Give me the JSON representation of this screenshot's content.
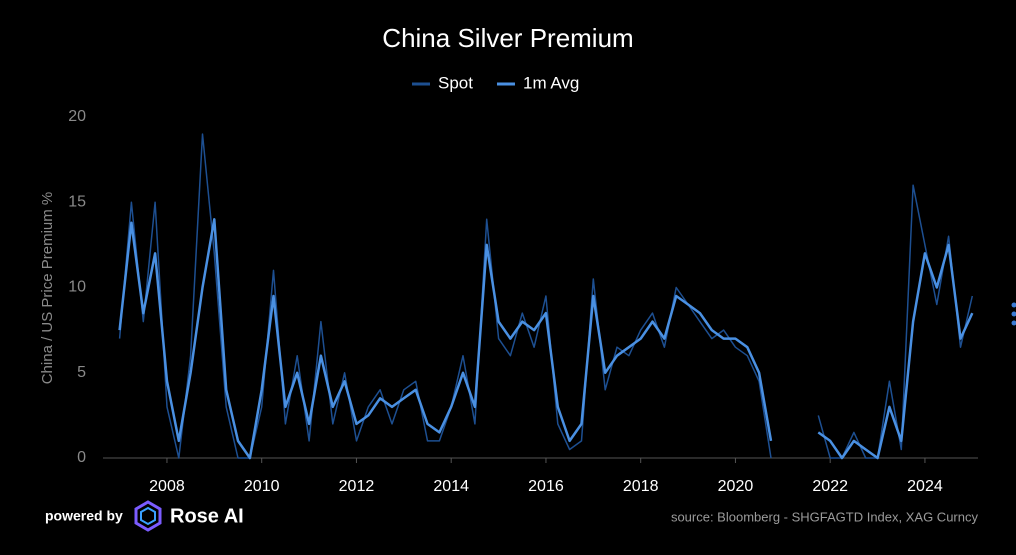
{
  "chart_data": {
    "type": "line",
    "title": "China Silver Premium",
    "y_label": "China / US Price Premium %",
    "x": [
      2007,
      2007.25,
      2007.5,
      2007.75,
      2008,
      2008.25,
      2008.5,
      2008.75,
      2009,
      2009.25,
      2009.5,
      2009.75,
      2010,
      2010.25,
      2010.5,
      2010.75,
      2011,
      2011.25,
      2011.5,
      2011.75,
      2012,
      2012.25,
      2012.5,
      2012.75,
      2013,
      2013.25,
      2013.5,
      2013.75,
      2014,
      2014.25,
      2014.5,
      2014.75,
      2015,
      2015.25,
      2015.5,
      2015.75,
      2016,
      2016.25,
      2016.5,
      2016.75,
      2017,
      2017.25,
      2017.5,
      2017.75,
      2018,
      2018.25,
      2018.5,
      2018.75,
      2019,
      2019.25,
      2019.5,
      2019.75,
      2020,
      2020.25,
      2020.5,
      2020.75,
      2021,
      2021.25,
      2021.5,
      2021.75,
      2022,
      2022.25,
      2022.5,
      2022.75,
      2023,
      2023.25,
      2023.5,
      2023.75,
      2024,
      2024.25,
      2024.5,
      2024.75,
      2025
    ],
    "series": [
      {
        "name": "Spot",
        "color": "#1d4f91",
        "width": 1.5,
        "values": [
          7,
          15,
          8,
          15,
          3,
          0,
          6,
          19,
          12,
          3,
          0,
          0,
          3,
          11,
          2,
          6,
          1,
          8,
          2,
          5,
          1,
          3,
          4,
          2,
          4,
          4.5,
          1,
          1,
          3,
          6,
          2,
          14,
          7,
          6,
          8.5,
          6.5,
          9.5,
          2,
          0.5,
          1,
          10.5,
          4,
          6.5,
          6,
          7.5,
          8.5,
          6.5,
          10,
          9,
          8,
          7,
          7.5,
          6.5,
          6,
          4.5,
          0,
          null,
          null,
          null,
          2.5,
          0,
          0,
          1.5,
          0,
          0,
          4.5,
          0.5,
          16,
          12.5,
          9,
          13,
          6.5,
          9.5
        ]
      },
      {
        "name": "1m Avg",
        "color": "#4a90e2",
        "width": 2.5,
        "values": [
          7.5,
          13.8,
          8.5,
          12,
          4.5,
          1,
          5,
          10,
          14,
          4,
          1,
          0,
          4,
          9.5,
          3,
          5,
          2,
          6,
          3,
          4.5,
          2,
          2.5,
          3.5,
          3,
          3.5,
          4,
          2,
          1.5,
          3,
          5,
          3,
          12.5,
          8,
          7,
          8,
          7.5,
          8.5,
          3,
          1,
          2,
          9.5,
          5,
          6,
          6.5,
          7,
          8,
          7,
          9.5,
          9,
          8.5,
          7.5,
          7,
          7,
          6.5,
          5,
          1,
          null,
          null,
          null,
          1.5,
          1,
          0,
          1,
          0.5,
          0,
          3,
          1,
          8,
          12,
          10,
          12.5,
          7,
          8.5
        ]
      }
    ],
    "xlim": [
      2006.65,
      2025.12
    ],
    "xticks": [
      2008,
      2010,
      2012,
      2014,
      2016,
      2018,
      2020,
      2022,
      2024
    ],
    "ylim": [
      0,
      20
    ],
    "yticks": [
      0,
      5,
      10,
      15,
      20
    ],
    "grid": false,
    "legend": "top"
  },
  "footer": {
    "powered": "powered by",
    "brand": "Rose AI",
    "source": "source: Bloomberg - SHGFAGTD Index, XAG Curncy"
  }
}
